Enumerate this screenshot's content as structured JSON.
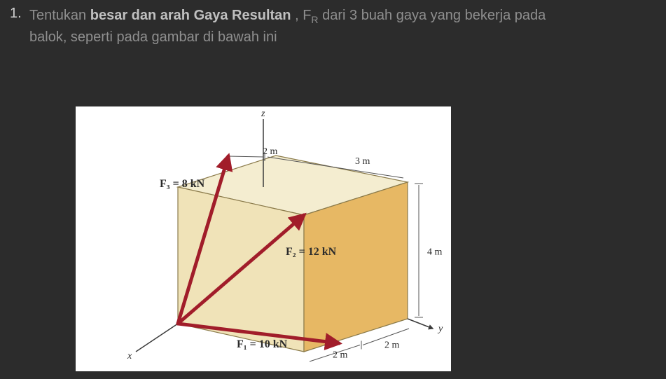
{
  "question": {
    "number": "1.",
    "line1_prefix": "Tentukan ",
    "line1_bold": "besar dan arah Gaya Resultan",
    "line1_mid": " , F",
    "line1_sub": "R",
    "line1_suffix": " dari 3 buah gaya yang bekerja pada",
    "line2": "balok, seperti pada gambar di bawah ini"
  },
  "figure": {
    "axes": {
      "x": "x",
      "y": "y",
      "z": "z"
    },
    "dims": {
      "top_left": "2 m",
      "top_right": "3 m",
      "right": "4 m",
      "bottom1": "2 m",
      "bottom2": "2 m"
    },
    "forces": {
      "F1": "F₁ = 10 kN",
      "F2": "F₂ = 12 kN",
      "F3": "F₃ = 8 kN"
    },
    "colors": {
      "face_left": "#f0e3b8",
      "face_right": "#e7b864",
      "face_top": "#f4edd0",
      "edge": "#8a7a4a",
      "arrow": "#a11d2a",
      "dim": "#555555",
      "axis": "#3a3a3a"
    },
    "geometry": {
      "O": [
        146,
        310
      ],
      "A": [
        326,
        350
      ],
      "B": [
        474,
        303
      ],
      "C": [
        286,
        265
      ],
      "OT": [
        146,
        115
      ],
      "AT": [
        326,
        155
      ],
      "BT": [
        474,
        108
      ],
      "CT": [
        286,
        70
      ],
      "M2": [
        218,
        71
      ],
      "Y": [
        510,
        317
      ],
      "F1_tip": [
        376,
        338
      ],
      "F2_tip": [
        326,
        155
      ],
      "F3_tip": [
        218,
        71
      ]
    }
  }
}
